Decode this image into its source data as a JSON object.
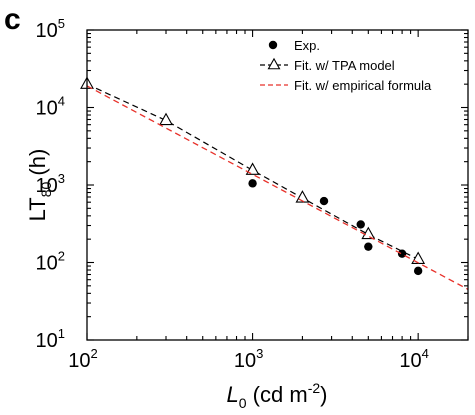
{
  "panel_label": "c",
  "chart_data": {
    "type": "scatter",
    "xscale": "log",
    "yscale": "log",
    "xlim": [
      100,
      20000
    ],
    "ylim": [
      10,
      100000
    ],
    "xlabel": {
      "italic": "L",
      "sub": "0",
      "rest": " (cd m",
      "sup": "-2",
      "close": ")"
    },
    "ylabel": {
      "main": "LT",
      "sub": "80",
      "rest": " (h)"
    },
    "xticks": [
      {
        "value": 100,
        "base": "10",
        "exp": "2"
      },
      {
        "value": 1000,
        "base": "10",
        "exp": "3"
      },
      {
        "value": 10000,
        "base": "10",
        "exp": "4"
      }
    ],
    "yticks": [
      {
        "value": 10,
        "base": "10",
        "exp": "1"
      },
      {
        "value": 100,
        "base": "10",
        "exp": "2"
      },
      {
        "value": 1000,
        "base": "10",
        "exp": "3"
      },
      {
        "value": 10000,
        "base": "10",
        "exp": "4"
      },
      {
        "value": 100000,
        "base": "10",
        "exp": "5"
      }
    ],
    "legend_position": "top-right",
    "series": [
      {
        "name": "Exp.",
        "kind": "points",
        "marker": "filled-circle",
        "color": "#000000",
        "points": [
          {
            "x": 1000,
            "y": 1050
          },
          {
            "x": 2700,
            "y": 620
          },
          {
            "x": 4500,
            "y": 310
          },
          {
            "x": 5000,
            "y": 160
          },
          {
            "x": 8000,
            "y": 130
          },
          {
            "x": 10000,
            "y": 78
          }
        ]
      },
      {
        "name": "Fit. w/ TPA model",
        "kind": "line-markers",
        "marker": "open-triangle",
        "color": "#000000",
        "points": [
          {
            "x": 100,
            "y": 20000
          },
          {
            "x": 300,
            "y": 6800
          },
          {
            "x": 1000,
            "y": 1550
          },
          {
            "x": 2000,
            "y": 680
          },
          {
            "x": 5000,
            "y": 230
          },
          {
            "x": 10000,
            "y": 110
          }
        ]
      },
      {
        "name": "Fit. w/ empirical formula",
        "kind": "line",
        "color": "#e8312a",
        "points": [
          {
            "x": 100,
            "y": 19000
          },
          {
            "x": 20000,
            "y": 45
          }
        ]
      }
    ]
  }
}
